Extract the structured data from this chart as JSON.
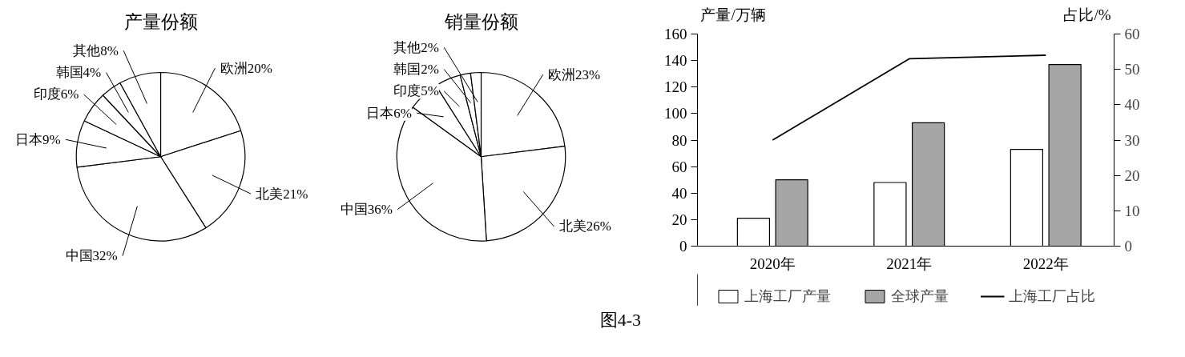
{
  "chart_data": [
    {
      "type": "pie",
      "title": "产量份额",
      "categories": [
        "欧洲",
        "北美",
        "中国",
        "日本",
        "印度",
        "韩国",
        "其他"
      ],
      "values": [
        20,
        21,
        32,
        9,
        6,
        4,
        8
      ],
      "value_labels": [
        "20%",
        "21%",
        "32%",
        "9%",
        "6%",
        "4%",
        "8%"
      ],
      "colors": [
        "#ffffff",
        "#ffffff",
        "#ffffff",
        "#ffffff",
        "#ffffff",
        "#ffffff",
        "#ffffff"
      ]
    },
    {
      "type": "pie",
      "title": "销量份额",
      "categories": [
        "欧洲",
        "北美",
        "中国",
        "日本",
        "印度",
        "韩国",
        "其他"
      ],
      "values": [
        23,
        26,
        36,
        6,
        5,
        2,
        2
      ],
      "value_labels": [
        "23%",
        "26%",
        "36%",
        "6%",
        "5%",
        "2%",
        "2%"
      ],
      "colors": [
        "#ffffff",
        "#ffffff",
        "#ffffff",
        "#ffffff",
        "#ffffff",
        "#ffffff",
        "#ffffff"
      ]
    },
    {
      "type": "bar",
      "categories": [
        "2020年",
        "2021年",
        "2022年"
      ],
      "ylabel": "产量/万辆",
      "y2label": "占比/%",
      "ylim": [
        0,
        160
      ],
      "yticks": [
        0,
        20,
        40,
        60,
        80,
        100,
        120,
        140,
        160
      ],
      "y2lim": [
        0,
        60
      ],
      "y2ticks": [
        0,
        10,
        20,
        30,
        40,
        50,
        60
      ],
      "legend": "bottom",
      "grid": false,
      "annotations": [
        "图4-3"
      ],
      "series": [
        {
          "name": "上海工厂产量",
          "color": "#ffffff",
          "values": [
            21,
            48,
            73
          ]
        },
        {
          "name": "全球产量",
          "color": "#a6a6a6",
          "values": [
            50,
            93,
            137
          ]
        },
        {
          "name": "上海工厂占比",
          "type": "line",
          "axis": "y2",
          "color": "#000000",
          "values": [
            30,
            53,
            54
          ]
        }
      ]
    }
  ]
}
